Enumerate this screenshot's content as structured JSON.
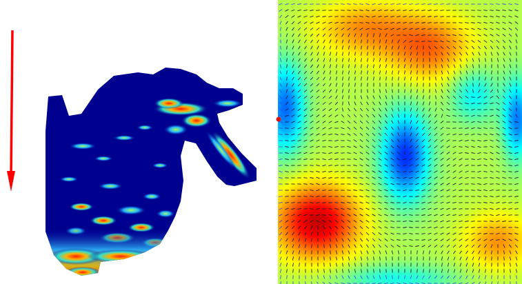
{
  "figure": {
    "direction_arrow": {
      "color": "#ff0000"
    },
    "mesh": {
      "colormap": "jet",
      "base_color": "#00008f"
    },
    "field": {
      "colormap": "jet",
      "vector_color": "#1a1a3a",
      "boundary_vector_color": "#3a4ce0",
      "marker_color": "#e01010"
    }
  }
}
